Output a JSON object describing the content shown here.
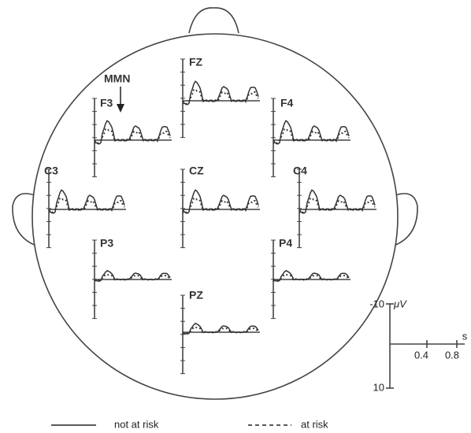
{
  "electrodes": [
    {
      "label": "FZ"
    },
    {
      "label": "F3"
    },
    {
      "label": "F4"
    },
    {
      "label": "C3"
    },
    {
      "label": "CZ"
    },
    {
      "label": "C4"
    },
    {
      "label": "P3"
    },
    {
      "label": "P4"
    },
    {
      "label": "PZ"
    }
  ],
  "annotation": "MMN",
  "scale": {
    "y_top": "-10",
    "y_unit": "μV",
    "y_bottom": "10",
    "x_unit": "s",
    "x_ticks": [
      "0.4",
      "0.8"
    ]
  },
  "legend": [
    {
      "label": "not at risk",
      "style": "solid"
    },
    {
      "label": "at risk",
      "style": "dotted"
    }
  ]
}
